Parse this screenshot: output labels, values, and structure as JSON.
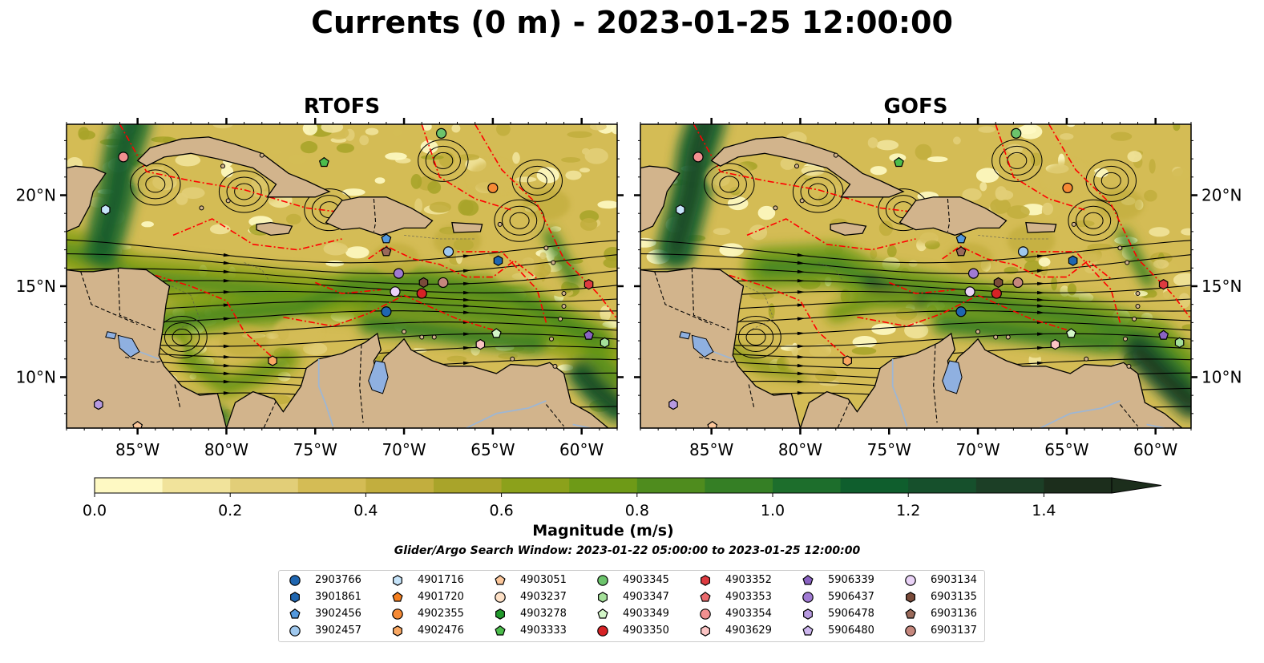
{
  "title": "Currents (0 m) - 2023-01-25 12:00:00",
  "panels": [
    {
      "title": "RTOFS",
      "model": "rtofs"
    },
    {
      "title": "GOFS",
      "model": "gofs"
    }
  ],
  "map_extent": {
    "lon_min": -89,
    "lon_max": -58,
    "lat_min": 7.2,
    "lat_max": 23.9
  },
  "axis": {
    "lon_ticks": [
      -85,
      -80,
      -75,
      -70,
      -65,
      -60
    ],
    "lon_labels": [
      "85°W",
      "80°W",
      "75°W",
      "70°W",
      "65°W",
      "60°W"
    ],
    "lat_ticks": [
      10,
      15,
      20
    ],
    "lat_labels": [
      "10°N",
      "15°N",
      "20°N"
    ]
  },
  "colorbar": {
    "label": "Magnitude (m/s)",
    "ticks": [
      0.0,
      0.2,
      0.4,
      0.6,
      0.8,
      1.0,
      1.2,
      1.4
    ],
    "tick_labels": [
      "0.0",
      "0.2",
      "0.4",
      "0.6",
      "0.8",
      "1.0",
      "1.2",
      "1.4"
    ],
    "min": 0.0,
    "max": 1.5,
    "extend": "max",
    "colors": [
      "#fef9c3",
      "#f1e39b",
      "#e2ce78",
      "#d4bc55",
      "#c2ae3e",
      "#a9a42a",
      "#8ca11b",
      "#6e9a17",
      "#4f8c1e",
      "#357f25",
      "#1d6e2c",
      "#0f5e2d",
      "#16502c",
      "#1c3f26",
      "#1c2e1c"
    ]
  },
  "subtitle": "Glider/Argo Search Window: 2023-01-22 05:00:00 to 2023-01-25 12:00:00",
  "colors": {
    "land": "#d2b48c",
    "lake": "#8fb0e0",
    "river": "#9eb6d3",
    "eez_line": "#ff0000",
    "streamline": "#000000",
    "coast": "#000000"
  },
  "legend": [
    {
      "id": "2903766",
      "marker": "circle",
      "color": "#1f66b0"
    },
    {
      "id": "3901861",
      "marker": "hexagon",
      "color": "#1f66b0"
    },
    {
      "id": "3902456",
      "marker": "pentagon",
      "color": "#5499de"
    },
    {
      "id": "3902457",
      "marker": "circle",
      "color": "#9fc8ee"
    },
    {
      "id": "4901716",
      "marker": "hexagon",
      "color": "#c6e4fa"
    },
    {
      "id": "4901720",
      "marker": "pentagon",
      "color": "#f57f1f"
    },
    {
      "id": "4902355",
      "marker": "circle",
      "color": "#f68a35"
    },
    {
      "id": "4902476",
      "marker": "hexagon",
      "color": "#f9a863"
    },
    {
      "id": "4903051",
      "marker": "pentagon",
      "color": "#fcc79b"
    },
    {
      "id": "4903237",
      "marker": "circle",
      "color": "#fde0c6"
    },
    {
      "id": "4903278",
      "marker": "hexagon",
      "color": "#229a2c"
    },
    {
      "id": "4903333",
      "marker": "pentagon",
      "color": "#4cbd4c"
    },
    {
      "id": "4903345",
      "marker": "circle",
      "color": "#6cc46c"
    },
    {
      "id": "4903347",
      "marker": "hexagon",
      "color": "#a4df99"
    },
    {
      "id": "4903349",
      "marker": "pentagon",
      "color": "#d3f6c8"
    },
    {
      "id": "4903350",
      "marker": "circle",
      "color": "#d62225"
    },
    {
      "id": "4903352",
      "marker": "hexagon",
      "color": "#de3a40"
    },
    {
      "id": "4903353",
      "marker": "pentagon",
      "color": "#ea6a6d"
    },
    {
      "id": "4903354",
      "marker": "circle",
      "color": "#f29090"
    },
    {
      "id": "4903629",
      "marker": "hexagon",
      "color": "#fbc4c4"
    },
    {
      "id": "5906339",
      "marker": "pentagon",
      "color": "#8a63c2"
    },
    {
      "id": "5906437",
      "marker": "circle",
      "color": "#a07ad3"
    },
    {
      "id": "5906478",
      "marker": "hexagon",
      "color": "#b79ae0"
    },
    {
      "id": "5906480",
      "marker": "pentagon",
      "color": "#cdb6ee"
    },
    {
      "id": "6903134",
      "marker": "circle",
      "color": "#ead3f7"
    },
    {
      "id": "6903135",
      "marker": "hexagon",
      "color": "#7a4b3a"
    },
    {
      "id": "6903136",
      "marker": "pentagon",
      "color": "#9a6a5a"
    },
    {
      "id": "6903137",
      "marker": "circle",
      "color": "#c5877d"
    }
  ],
  "floats": [
    {
      "id": "4903354",
      "lon": -85.8,
      "lat": 22.1
    },
    {
      "id": "4901716",
      "lon": -86.8,
      "lat": 19.2
    },
    {
      "id": "4903333",
      "lon": -74.5,
      "lat": 21.8
    },
    {
      "id": "4903345",
      "lon": -67.9,
      "lat": 23.4
    },
    {
      "id": "4902355",
      "lon": -65.0,
      "lat": 20.4
    },
    {
      "id": "3902456",
      "lon": -71.0,
      "lat": 17.6
    },
    {
      "id": "6903136",
      "lon": -71.0,
      "lat": 16.9
    },
    {
      "id": "3902457",
      "lon": -67.5,
      "lat": 16.9
    },
    {
      "id": "3901861",
      "lon": -64.7,
      "lat": 16.4
    },
    {
      "id": "5906437",
      "lon": -70.3,
      "lat": 15.7
    },
    {
      "id": "6903134",
      "lon": -70.5,
      "lat": 14.7
    },
    {
      "id": "6903135",
      "lon": -68.9,
      "lat": 15.2
    },
    {
      "id": "6903137",
      "lon": -67.8,
      "lat": 15.2
    },
    {
      "id": "4903350",
      "lon": -69.0,
      "lat": 14.6
    },
    {
      "id": "4903352",
      "lon": -59.6,
      "lat": 15.1
    },
    {
      "id": "2903766",
      "lon": -71.0,
      "lat": 13.6
    },
    {
      "id": "4903349",
      "lon": -64.8,
      "lat": 12.4
    },
    {
      "id": "4903629",
      "lon": -65.7,
      "lat": 11.8
    },
    {
      "id": "5906339",
      "lon": -59.6,
      "lat": 12.3
    },
    {
      "id": "4903347",
      "lon": -58.7,
      "lat": 11.9
    },
    {
      "id": "4902476",
      "lon": -77.4,
      "lat": 10.9
    },
    {
      "id": "5906478",
      "lon": -87.2,
      "lat": 8.5
    },
    {
      "id": "4903051",
      "lon": -85.0,
      "lat": 7.3
    }
  ]
}
